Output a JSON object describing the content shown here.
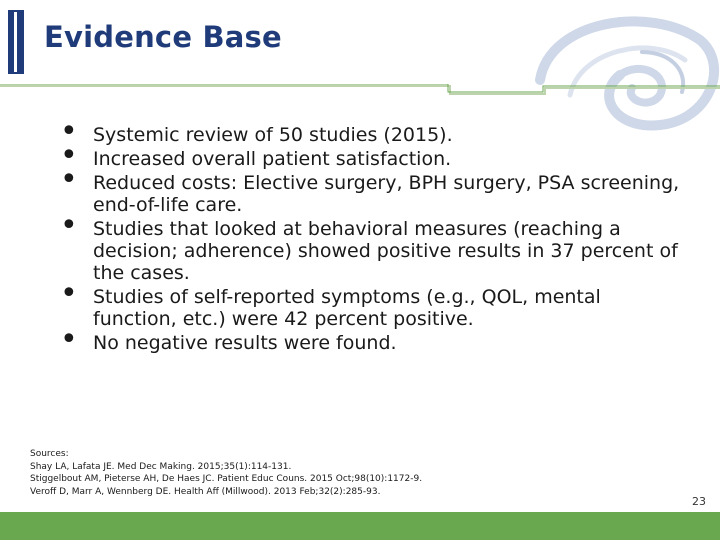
{
  "title": "Evidence Base",
  "bullets": [
    "Systemic review of 50 studies (2015).",
    "Increased overall patient satisfaction.",
    "Reduced costs: Elective surgery, BPH surgery, PSA screening, end-of-life care.",
    "Studies that looked at behavioral measures (reaching a decision; adherence) showed positive results in 37 percent of the cases.",
    "Studies of self-reported symptoms (e.g., QOL, mental function, etc.) were 42 percent positive.",
    "No negative results were found."
  ],
  "sources": {
    "heading": "Sources:",
    "items": [
      "Shay LA, Lafata JE. Med Dec Making. 2015;35(1):114-131.",
      "Stiggelbout AM, Pieterse AH, De Haes JC. Patient Educ Couns. 2015 Oct;98(10):1172-9.",
      "Veroff D, Marr A, Wennberg DE. Health Aff (Millwood). 2013 Feb;32(2):285-93."
    ]
  },
  "page_number": "23",
  "colors": {
    "title": "#1f3b7a",
    "accent_green": "#6aa84f",
    "swirl_gray": "#cfd8e8"
  },
  "icons": {
    "bullet": "•",
    "logo": "swirl-logo-icon"
  }
}
